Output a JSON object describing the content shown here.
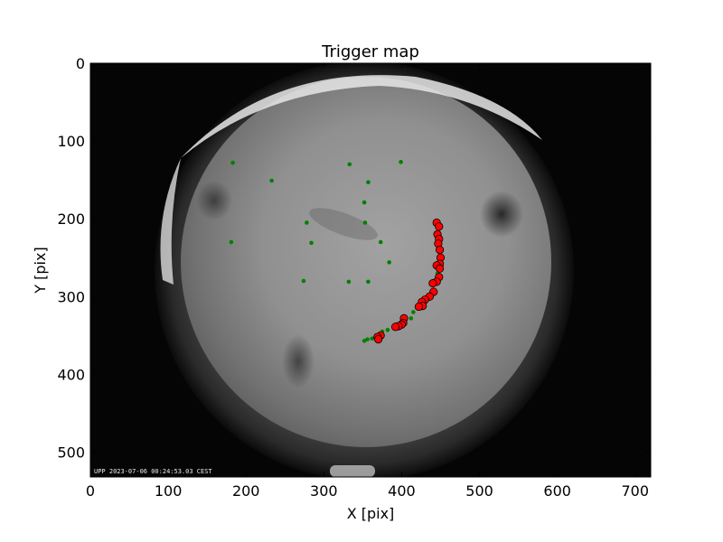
{
  "chart_data": {
    "type": "scatter",
    "title": "Trigger map",
    "xlabel": "X [pix]",
    "ylabel": "Y [pix]",
    "xlim": [
      0,
      720
    ],
    "ylim": [
      532,
      0
    ],
    "x_ticks": [
      0,
      100,
      200,
      300,
      400,
      500,
      600,
      700
    ],
    "y_ticks": [
      0,
      100,
      200,
      300,
      400,
      500
    ],
    "y_axis_inverted": true,
    "grid": false,
    "background": "grayscale all-sky camera image",
    "timestamp_overlay": "UPP 2023-07-06 00:24:53.03 CEST",
    "series": [
      {
        "color": "#008000",
        "marker": "small-dot",
        "points": [
          {
            "x": 183,
            "y": 128
          },
          {
            "x": 333,
            "y": 130
          },
          {
            "x": 399,
            "y": 127
          },
          {
            "x": 233,
            "y": 151
          },
          {
            "x": 357,
            "y": 153
          },
          {
            "x": 352,
            "y": 179
          },
          {
            "x": 278,
            "y": 205
          },
          {
            "x": 353,
            "y": 205
          },
          {
            "x": 181,
            "y": 230
          },
          {
            "x": 284,
            "y": 231
          },
          {
            "x": 373,
            "y": 230
          },
          {
            "x": 384,
            "y": 256
          },
          {
            "x": 274,
            "y": 280
          },
          {
            "x": 332,
            "y": 281
          },
          {
            "x": 357,
            "y": 281
          },
          {
            "x": 446,
            "y": 270
          },
          {
            "x": 440,
            "y": 292
          },
          {
            "x": 425,
            "y": 315
          },
          {
            "x": 415,
            "y": 320
          },
          {
            "x": 412,
            "y": 328
          },
          {
            "x": 392,
            "y": 336
          },
          {
            "x": 382,
            "y": 343
          },
          {
            "x": 375,
            "y": 345
          },
          {
            "x": 369,
            "y": 350
          },
          {
            "x": 362,
            "y": 354
          },
          {
            "x": 356,
            "y": 355
          },
          {
            "x": 352,
            "y": 357
          }
        ]
      },
      {
        "color": "#ff0000",
        "marker": "large-circle",
        "points": [
          {
            "x": 445,
            "y": 205
          },
          {
            "x": 448,
            "y": 210
          },
          {
            "x": 446,
            "y": 220
          },
          {
            "x": 448,
            "y": 226
          },
          {
            "x": 447,
            "y": 232
          },
          {
            "x": 449,
            "y": 240
          },
          {
            "x": 450,
            "y": 250
          },
          {
            "x": 449,
            "y": 258
          },
          {
            "x": 445,
            "y": 260
          },
          {
            "x": 449,
            "y": 264
          },
          {
            "x": 448,
            "y": 275
          },
          {
            "x": 445,
            "y": 281
          },
          {
            "x": 440,
            "y": 283
          },
          {
            "x": 441,
            "y": 294
          },
          {
            "x": 436,
            "y": 300
          },
          {
            "x": 430,
            "y": 304
          },
          {
            "x": 426,
            "y": 307
          },
          {
            "x": 427,
            "y": 312
          },
          {
            "x": 422,
            "y": 313
          },
          {
            "x": 403,
            "y": 328
          },
          {
            "x": 402,
            "y": 334
          },
          {
            "x": 400,
            "y": 336
          },
          {
            "x": 396,
            "y": 338
          },
          {
            "x": 392,
            "y": 339
          },
          {
            "x": 373,
            "y": 350
          },
          {
            "x": 369,
            "y": 352
          },
          {
            "x": 370,
            "y": 355
          }
        ]
      }
    ]
  }
}
